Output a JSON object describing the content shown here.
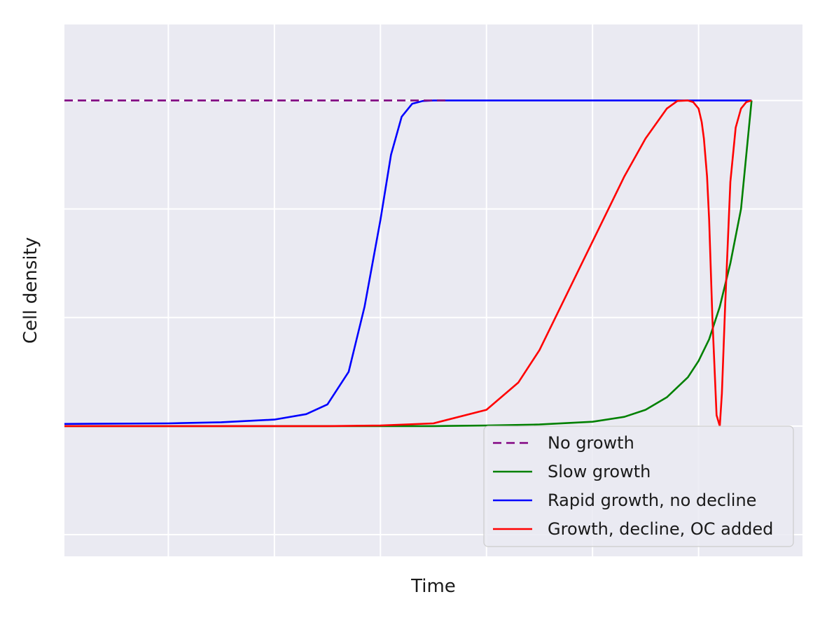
{
  "chart_data": {
    "type": "line",
    "title": "",
    "xlabel": "Time",
    "ylabel": "Cell density",
    "xlim": [
      -0.48,
      6.48
    ],
    "ylim": [
      -0.74,
      0.24
    ],
    "xticks": [
      0.5,
      1.5,
      2.5,
      3.5,
      4.5,
      5.5
    ],
    "yticks": [
      -0.7,
      -0.5,
      -0.3,
      -0.1,
      0.1
    ],
    "tick_labels_visible": false,
    "grid": true,
    "background": "#eaeaf2",
    "legend": {
      "position": "lower-right"
    },
    "series": [
      {
        "name": "No growth",
        "color": "#800080",
        "dash": "dashed",
        "x": [
          -0.48,
          3.12
        ],
        "y": [
          0.1,
          0.1
        ]
      },
      {
        "name": "Slow growth",
        "color": "#008000",
        "dash": "solid",
        "x": [
          -0.48,
          2.0,
          3.0,
          3.5,
          4.0,
          4.5,
          4.8,
          5.0,
          5.2,
          5.4,
          5.5,
          5.6,
          5.7,
          5.8,
          5.9,
          6.0
        ],
        "y": [
          -0.5,
          -0.5,
          -0.5,
          -0.499,
          -0.497,
          -0.492,
          -0.483,
          -0.47,
          -0.447,
          -0.41,
          -0.38,
          -0.34,
          -0.28,
          -0.2,
          -0.1,
          0.1
        ]
      },
      {
        "name": "Rapid growth, no decline",
        "color": "#0000ff",
        "dash": "solid",
        "x": [
          -0.48,
          0.5,
          1.0,
          1.5,
          1.8,
          2.0,
          2.2,
          2.35,
          2.5,
          2.6,
          2.7,
          2.8,
          2.9,
          3.0,
          3.1,
          3.15,
          3.3,
          3.5,
          4.5,
          5.5,
          6.0
        ],
        "y": [
          -0.496,
          -0.495,
          -0.493,
          -0.488,
          -0.478,
          -0.46,
          -0.4,
          -0.28,
          -0.12,
          0.0,
          0.07,
          0.094,
          0.099,
          0.1,
          0.1,
          0.1,
          0.1,
          0.1,
          0.1,
          0.1,
          0.1
        ]
      },
      {
        "name": "Growth, decline, OC added",
        "color": "#ff0000",
        "dash": "solid",
        "x": [
          -0.48,
          1.0,
          2.0,
          2.5,
          3.0,
          3.5,
          3.8,
          4.0,
          4.2,
          4.4,
          4.6,
          4.8,
          5.0,
          5.2,
          5.3,
          5.4,
          5.45,
          5.5,
          5.53,
          5.55,
          5.58,
          5.6,
          5.63,
          5.67,
          5.7,
          5.72,
          5.75,
          5.8,
          5.85,
          5.9,
          5.95,
          6.0
        ],
        "y": [
          -0.5,
          -0.5,
          -0.5,
          -0.499,
          -0.495,
          -0.47,
          -0.42,
          -0.36,
          -0.28,
          -0.2,
          -0.12,
          -0.04,
          0.03,
          0.085,
          0.099,
          0.1,
          0.097,
          0.085,
          0.06,
          0.03,
          -0.04,
          -0.12,
          -0.3,
          -0.48,
          -0.5,
          -0.44,
          -0.28,
          -0.05,
          0.05,
          0.085,
          0.097,
          0.1
        ]
      }
    ]
  }
}
